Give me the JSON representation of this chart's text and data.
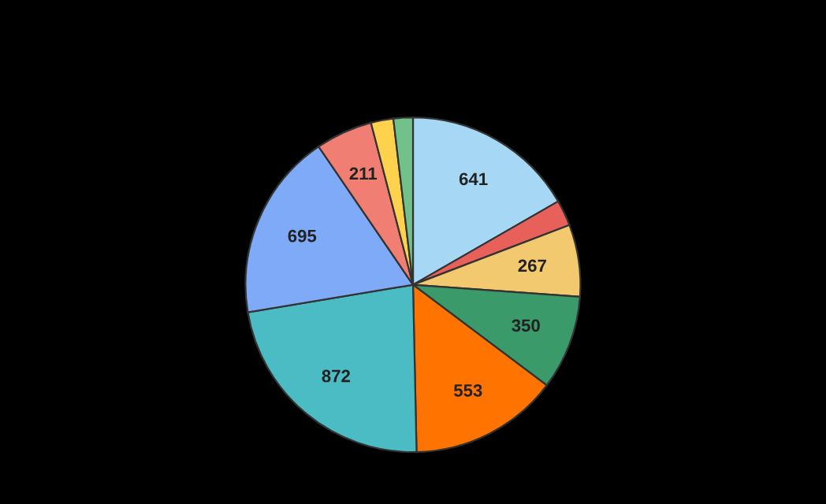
{
  "chart_data": {
    "type": "pie",
    "categories": [
      null,
      null,
      null,
      null,
      null,
      null,
      null,
      null,
      null,
      null
    ],
    "values": [
      641,
      96,
      267,
      350,
      553,
      872,
      695,
      211,
      83,
      72
    ],
    "value_labels": [
      "641",
      null,
      "267",
      "350",
      "553",
      "872",
      "695",
      "211",
      null,
      null
    ],
    "colors": [
      "#a6d8f5",
      "#e8605a",
      "#f2c96e",
      "#3a9a6a",
      "#ff7300",
      "#4cbcc4",
      "#7eaaf7",
      "#f07e72",
      "#ffd24d",
      "#72c08a"
    ]
  }
}
